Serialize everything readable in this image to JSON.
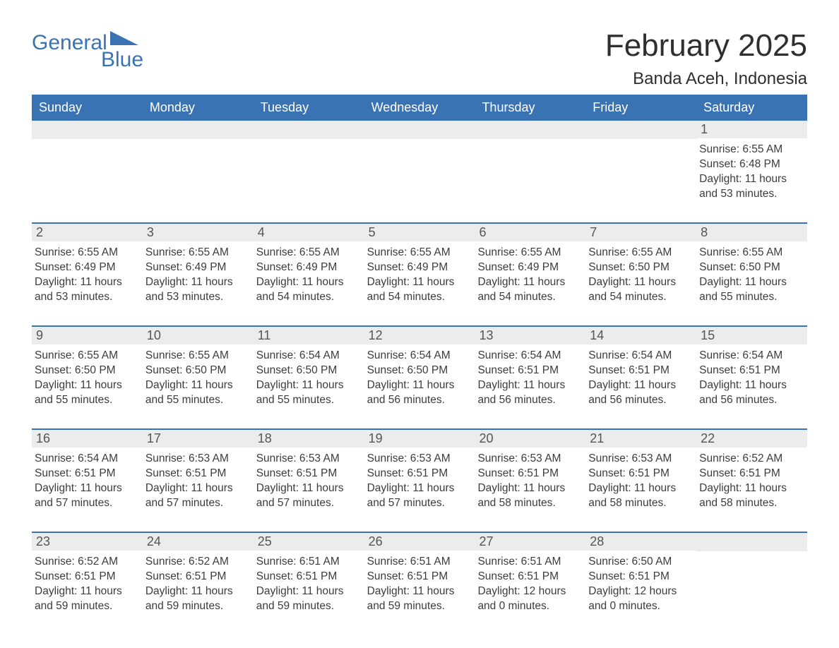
{
  "logo": {
    "word1": "General",
    "word2": "Blue",
    "accent_color": "#3a73b4"
  },
  "title": {
    "month": "February 2025",
    "location": "Banda Aceh, Indonesia"
  },
  "columns": [
    "Sunday",
    "Monday",
    "Tuesday",
    "Wednesday",
    "Thursday",
    "Friday",
    "Saturday"
  ],
  "colors": {
    "header_bg": "#3a73b4",
    "header_text": "#ffffff",
    "daynum_bg": "#ececec",
    "week_divider": "#3a73b4",
    "body_text": "#3c3c3c",
    "background": "#ffffff"
  },
  "weeks": [
    [
      null,
      null,
      null,
      null,
      null,
      null,
      {
        "n": "1",
        "sunrise": "Sunrise: 6:55 AM",
        "sunset": "Sunset: 6:48 PM",
        "day1": "Daylight: 11 hours",
        "day2": "and 53 minutes."
      }
    ],
    [
      {
        "n": "2",
        "sunrise": "Sunrise: 6:55 AM",
        "sunset": "Sunset: 6:49 PM",
        "day1": "Daylight: 11 hours",
        "day2": "and 53 minutes."
      },
      {
        "n": "3",
        "sunrise": "Sunrise: 6:55 AM",
        "sunset": "Sunset: 6:49 PM",
        "day1": "Daylight: 11 hours",
        "day2": "and 53 minutes."
      },
      {
        "n": "4",
        "sunrise": "Sunrise: 6:55 AM",
        "sunset": "Sunset: 6:49 PM",
        "day1": "Daylight: 11 hours",
        "day2": "and 54 minutes."
      },
      {
        "n": "5",
        "sunrise": "Sunrise: 6:55 AM",
        "sunset": "Sunset: 6:49 PM",
        "day1": "Daylight: 11 hours",
        "day2": "and 54 minutes."
      },
      {
        "n": "6",
        "sunrise": "Sunrise: 6:55 AM",
        "sunset": "Sunset: 6:49 PM",
        "day1": "Daylight: 11 hours",
        "day2": "and 54 minutes."
      },
      {
        "n": "7",
        "sunrise": "Sunrise: 6:55 AM",
        "sunset": "Sunset: 6:50 PM",
        "day1": "Daylight: 11 hours",
        "day2": "and 54 minutes."
      },
      {
        "n": "8",
        "sunrise": "Sunrise: 6:55 AM",
        "sunset": "Sunset: 6:50 PM",
        "day1": "Daylight: 11 hours",
        "day2": "and 55 minutes."
      }
    ],
    [
      {
        "n": "9",
        "sunrise": "Sunrise: 6:55 AM",
        "sunset": "Sunset: 6:50 PM",
        "day1": "Daylight: 11 hours",
        "day2": "and 55 minutes."
      },
      {
        "n": "10",
        "sunrise": "Sunrise: 6:55 AM",
        "sunset": "Sunset: 6:50 PM",
        "day1": "Daylight: 11 hours",
        "day2": "and 55 minutes."
      },
      {
        "n": "11",
        "sunrise": "Sunrise: 6:54 AM",
        "sunset": "Sunset: 6:50 PM",
        "day1": "Daylight: 11 hours",
        "day2": "and 55 minutes."
      },
      {
        "n": "12",
        "sunrise": "Sunrise: 6:54 AM",
        "sunset": "Sunset: 6:50 PM",
        "day1": "Daylight: 11 hours",
        "day2": "and 56 minutes."
      },
      {
        "n": "13",
        "sunrise": "Sunrise: 6:54 AM",
        "sunset": "Sunset: 6:51 PM",
        "day1": "Daylight: 11 hours",
        "day2": "and 56 minutes."
      },
      {
        "n": "14",
        "sunrise": "Sunrise: 6:54 AM",
        "sunset": "Sunset: 6:51 PM",
        "day1": "Daylight: 11 hours",
        "day2": "and 56 minutes."
      },
      {
        "n": "15",
        "sunrise": "Sunrise: 6:54 AM",
        "sunset": "Sunset: 6:51 PM",
        "day1": "Daylight: 11 hours",
        "day2": "and 56 minutes."
      }
    ],
    [
      {
        "n": "16",
        "sunrise": "Sunrise: 6:54 AM",
        "sunset": "Sunset: 6:51 PM",
        "day1": "Daylight: 11 hours",
        "day2": "and 57 minutes."
      },
      {
        "n": "17",
        "sunrise": "Sunrise: 6:53 AM",
        "sunset": "Sunset: 6:51 PM",
        "day1": "Daylight: 11 hours",
        "day2": "and 57 minutes."
      },
      {
        "n": "18",
        "sunrise": "Sunrise: 6:53 AM",
        "sunset": "Sunset: 6:51 PM",
        "day1": "Daylight: 11 hours",
        "day2": "and 57 minutes."
      },
      {
        "n": "19",
        "sunrise": "Sunrise: 6:53 AM",
        "sunset": "Sunset: 6:51 PM",
        "day1": "Daylight: 11 hours",
        "day2": "and 57 minutes."
      },
      {
        "n": "20",
        "sunrise": "Sunrise: 6:53 AM",
        "sunset": "Sunset: 6:51 PM",
        "day1": "Daylight: 11 hours",
        "day2": "and 58 minutes."
      },
      {
        "n": "21",
        "sunrise": "Sunrise: 6:53 AM",
        "sunset": "Sunset: 6:51 PM",
        "day1": "Daylight: 11 hours",
        "day2": "and 58 minutes."
      },
      {
        "n": "22",
        "sunrise": "Sunrise: 6:52 AM",
        "sunset": "Sunset: 6:51 PM",
        "day1": "Daylight: 11 hours",
        "day2": "and 58 minutes."
      }
    ],
    [
      {
        "n": "23",
        "sunrise": "Sunrise: 6:52 AM",
        "sunset": "Sunset: 6:51 PM",
        "day1": "Daylight: 11 hours",
        "day2": "and 59 minutes."
      },
      {
        "n": "24",
        "sunrise": "Sunrise: 6:52 AM",
        "sunset": "Sunset: 6:51 PM",
        "day1": "Daylight: 11 hours",
        "day2": "and 59 minutes."
      },
      {
        "n": "25",
        "sunrise": "Sunrise: 6:51 AM",
        "sunset": "Sunset: 6:51 PM",
        "day1": "Daylight: 11 hours",
        "day2": "and 59 minutes."
      },
      {
        "n": "26",
        "sunrise": "Sunrise: 6:51 AM",
        "sunset": "Sunset: 6:51 PM",
        "day1": "Daylight: 11 hours",
        "day2": "and 59 minutes."
      },
      {
        "n": "27",
        "sunrise": "Sunrise: 6:51 AM",
        "sunset": "Sunset: 6:51 PM",
        "day1": "Daylight: 12 hours",
        "day2": "and 0 minutes."
      },
      {
        "n": "28",
        "sunrise": "Sunrise: 6:50 AM",
        "sunset": "Sunset: 6:51 PM",
        "day1": "Daylight: 12 hours",
        "day2": "and 0 minutes."
      },
      null
    ]
  ]
}
